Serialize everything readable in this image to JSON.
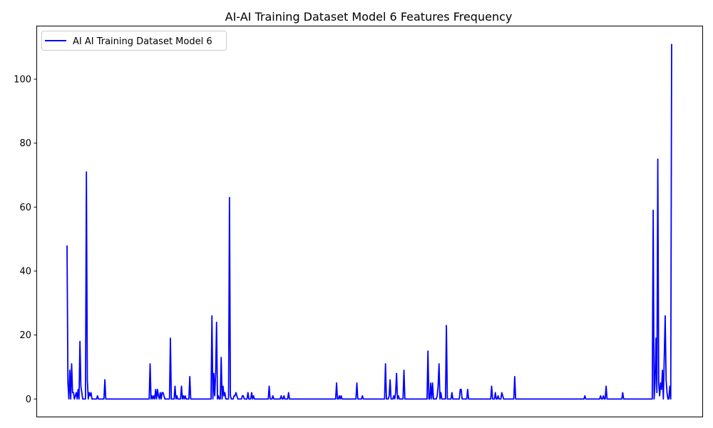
{
  "chart_data": {
    "type": "line",
    "title": "AI-AI Training Dataset Model 6 Features Frequency",
    "xlabel": "",
    "ylabel": "",
    "x_ticks_visible": false,
    "ylim": [
      -5.5,
      116.5
    ],
    "y_ticks": [
      0,
      20,
      40,
      60,
      80,
      100
    ],
    "grid": false,
    "legend_position": "top-left",
    "series": [
      {
        "name": "AI AI Training Dataset Model 6",
        "color": "#0000ff",
        "values": [
          48,
          5,
          0,
          9,
          0,
          11,
          2,
          2,
          0,
          1,
          2,
          0,
          3,
          0,
          18,
          4,
          2,
          0,
          0,
          0,
          0,
          71,
          6,
          0,
          2,
          1,
          2,
          0,
          0,
          0,
          0,
          0,
          0,
          1,
          0,
          0,
          0,
          0,
          0,
          0,
          0,
          6,
          0,
          0,
          0,
          0,
          0,
          0,
          0,
          0,
          0,
          0,
          0,
          0,
          0,
          0,
          0,
          0,
          0,
          0,
          0,
          0,
          0,
          0,
          0,
          0,
          0,
          0,
          0,
          0,
          0,
          0,
          0,
          0,
          0,
          0,
          0,
          0,
          0,
          0,
          0,
          0,
          0,
          0,
          0,
          0,
          0,
          0,
          0,
          0,
          11,
          0,
          1,
          0,
          1,
          0,
          3,
          0,
          3,
          1,
          0,
          2,
          0,
          2,
          2,
          1,
          0,
          0,
          0,
          0,
          0,
          0,
          19,
          0,
          0,
          0,
          0,
          4,
          0,
          1,
          0,
          0,
          0,
          0,
          4,
          0,
          1,
          0,
          1,
          0,
          0,
          0,
          0,
          7,
          0,
          0,
          0,
          0,
          0,
          0,
          0,
          0,
          0,
          0,
          0,
          0,
          0,
          0,
          0,
          0,
          0,
          0,
          0,
          0,
          0,
          0,
          0,
          26,
          0,
          8,
          1,
          8,
          24,
          0,
          1,
          0,
          0,
          13,
          0,
          4,
          1,
          2,
          0,
          0,
          0,
          0,
          63,
          1,
          0,
          0,
          0,
          1,
          1,
          2,
          1,
          0,
          0,
          0,
          0,
          0,
          1,
          1,
          0,
          0,
          0,
          0,
          2,
          0,
          0,
          0,
          2,
          0,
          1,
          0,
          0,
          0,
          0,
          0,
          0,
          0,
          0,
          0,
          0,
          0,
          0,
          0,
          0,
          0,
          0,
          4,
          0,
          0,
          0,
          1,
          0,
          0,
          0,
          0,
          0,
          0,
          0,
          0,
          1,
          0,
          0,
          1,
          0,
          0,
          0,
          0,
          2,
          0,
          0,
          0,
          0,
          0,
          0,
          0,
          0,
          0,
          0,
          0,
          0,
          0,
          0,
          0,
          0,
          0,
          0,
          0,
          0,
          0,
          0,
          0,
          0,
          0,
          0,
          0,
          0,
          0,
          0,
          0,
          0,
          0,
          0,
          0,
          0,
          0,
          0,
          0,
          0,
          0,
          0,
          0,
          0,
          0,
          0,
          0,
          0,
          0,
          0,
          0,
          5,
          0,
          0,
          1,
          0,
          1,
          0,
          0,
          0,
          0,
          0,
          0,
          0,
          0,
          0,
          0,
          0,
          0,
          0,
          0,
          0,
          0,
          5,
          0,
          0,
          0,
          0,
          0,
          1,
          0,
          0,
          0,
          0,
          0,
          0,
          0,
          0,
          0,
          0,
          0,
          0,
          0,
          0,
          0,
          0,
          0,
          0,
          0,
          0,
          0,
          0,
          0,
          0,
          11,
          0,
          0,
          0,
          1,
          6,
          0,
          0,
          0,
          1,
          0,
          2,
          8,
          0,
          1,
          0,
          0,
          0,
          0,
          0,
          9,
          0,
          0,
          0,
          0,
          0,
          0,
          0,
          0,
          0,
          0,
          0,
          0,
          0,
          0,
          0,
          0,
          0,
          0,
          0,
          0,
          0,
          0,
          0,
          0,
          0,
          15,
          0,
          0,
          5,
          0,
          5,
          0,
          0,
          0,
          0,
          1,
          4,
          11,
          0,
          2,
          0,
          0,
          0,
          0,
          0,
          23,
          0,
          0,
          0,
          0,
          0,
          2,
          0,
          0,
          0,
          0,
          0,
          0,
          0,
          0,
          3,
          3,
          0,
          0,
          0,
          0,
          0,
          0,
          3,
          0,
          0,
          0,
          0,
          0,
          0,
          0,
          0,
          0,
          0,
          0,
          0,
          0,
          0,
          0,
          0,
          0,
          0,
          0,
          0,
          0,
          0,
          0,
          0,
          0,
          4,
          0,
          0,
          0,
          2,
          0,
          0,
          1,
          0,
          0,
          0,
          2,
          1,
          0,
          0,
          0,
          0,
          0,
          0,
          0,
          0,
          0,
          0,
          0,
          0,
          7,
          0,
          0,
          0,
          0,
          0,
          0,
          0,
          0,
          0,
          0,
          0,
          0,
          0,
          0,
          0,
          0,
          0,
          0,
          0,
          0,
          0,
          0,
          0,
          0,
          0,
          0,
          0,
          0,
          0,
          0,
          0,
          0,
          0,
          0,
          0,
          0,
          0,
          0,
          0,
          0,
          0,
          0,
          0,
          0,
          0,
          0,
          0,
          0,
          0,
          0,
          0,
          0,
          0,
          0,
          0,
          0,
          0,
          0,
          0,
          0,
          0,
          0,
          0,
          0,
          0,
          0,
          0,
          0,
          0,
          0,
          0,
          0,
          0,
          0,
          0,
          1,
          0,
          0,
          0,
          0,
          0,
          0,
          0,
          0,
          0,
          0,
          0,
          0,
          0,
          0,
          0,
          0,
          1,
          0,
          0,
          1,
          0,
          0,
          4,
          0,
          0,
          0,
          0,
          0,
          0,
          0,
          0,
          0,
          0,
          0,
          0,
          0,
          0,
          0,
          0,
          0,
          2,
          0,
          0,
          0,
          0,
          0,
          0,
          0,
          0,
          0,
          0,
          0,
          0,
          0,
          0,
          0,
          0,
          0,
          0,
          0,
          0,
          0,
          0,
          0,
          0,
          0,
          0,
          0,
          0,
          0,
          0,
          0,
          0,
          59,
          0,
          5,
          19,
          2,
          75,
          5,
          1,
          5,
          3,
          9,
          0,
          13,
          26,
          6,
          2,
          0,
          0,
          4,
          0,
          111
        ]
      }
    ]
  }
}
